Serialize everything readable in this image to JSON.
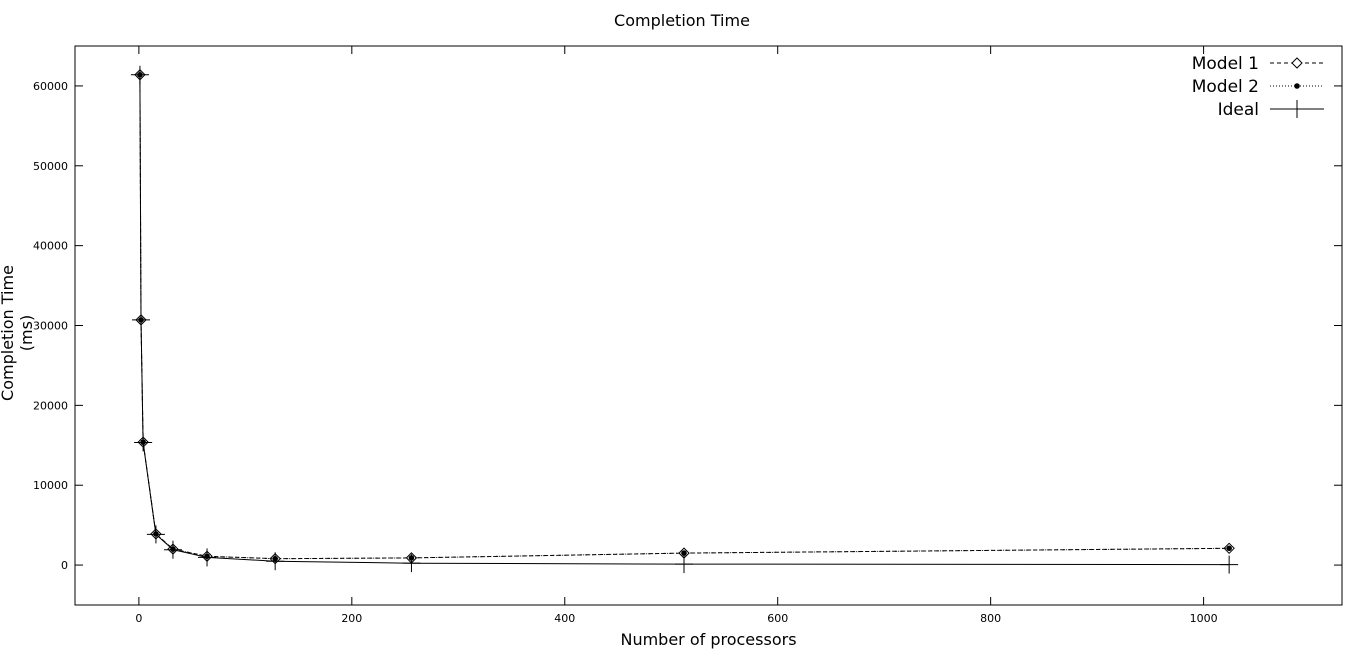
{
  "chart_data": {
    "type": "line",
    "title": "Completion Time",
    "xlabel": "Number of processors",
    "ylabel": "Completion Time (ms)",
    "xlim": [
      -60,
      1130
    ],
    "ylim": [
      -5000,
      65000
    ],
    "xticks": [
      0,
      200,
      400,
      600,
      800,
      1000
    ],
    "yticks": [
      0,
      10000,
      20000,
      30000,
      40000,
      50000,
      60000
    ],
    "grid": false,
    "legend_position": "top-right",
    "x": [
      1,
      2,
      4,
      16,
      32,
      64,
      128,
      256,
      512,
      1024
    ],
    "series": [
      {
        "name": "Model 1",
        "line": "dashed",
        "marker": "diamond",
        "values": [
          61400,
          30700,
          15400,
          3900,
          2000,
          1100,
          800,
          900,
          1500,
          2100
        ]
      },
      {
        "name": "Model 2",
        "line": "dotted",
        "marker": "dot",
        "values": [
          61400,
          30700,
          15400,
          3900,
          2000,
          1100,
          800,
          900,
          1500,
          2100
        ]
      },
      {
        "name": "Ideal",
        "line": "solid",
        "marker": "plus",
        "values": [
          61400,
          30700,
          15350,
          3840,
          1920,
          960,
          480,
          240,
          120,
          60
        ]
      }
    ]
  }
}
